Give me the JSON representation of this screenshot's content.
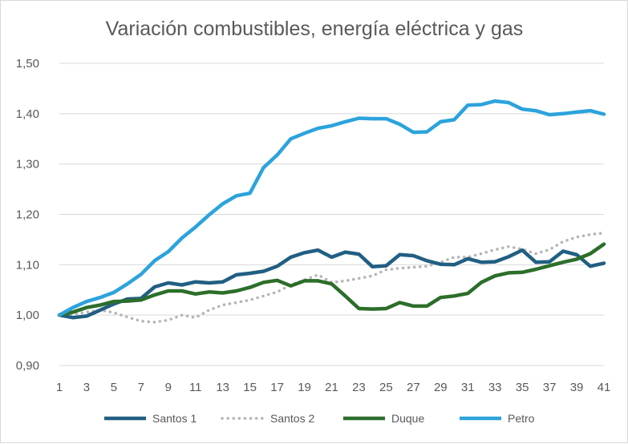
{
  "chart_data": {
    "type": "line",
    "title": "Variación combustibles, energía eléctrica y gas",
    "xlabel": "",
    "ylabel": "",
    "ylim": [
      0.9,
      1.5
    ],
    "grid": true,
    "legend_position": "bottom",
    "y_ticks": [
      "0,90",
      "1,00",
      "1,10",
      "1,20",
      "1,30",
      "1,40",
      "1,50"
    ],
    "x_ticks": [
      "1",
      "3",
      "5",
      "7",
      "9",
      "11",
      "13",
      "15",
      "17",
      "19",
      "21",
      "23",
      "25",
      "27",
      "29",
      "31",
      "33",
      "35",
      "37",
      "39",
      "41"
    ],
    "x": [
      1,
      2,
      3,
      4,
      5,
      6,
      7,
      8,
      9,
      10,
      11,
      12,
      13,
      14,
      15,
      16,
      17,
      18,
      19,
      20,
      21,
      22,
      23,
      24,
      25,
      26,
      27,
      28,
      29,
      30,
      31,
      32,
      33,
      34,
      35,
      36,
      37,
      38,
      39,
      40,
      41
    ],
    "series": [
      {
        "name": "Santos 1",
        "color": "#215f82",
        "style": "solid",
        "values": [
          1.0,
          0.995,
          0.998,
          1.01,
          1.022,
          1.032,
          1.033,
          1.056,
          1.064,
          1.06,
          1.066,
          1.064,
          1.066,
          1.08,
          1.083,
          1.087,
          1.097,
          1.115,
          1.124,
          1.129,
          1.115,
          1.125,
          1.121,
          1.096,
          1.098,
          1.12,
          1.118,
          1.108,
          1.101,
          1.1,
          1.112,
          1.105,
          1.106,
          1.116,
          1.129,
          1.105,
          1.106,
          1.127,
          1.12,
          1.097,
          1.103
        ]
      },
      {
        "name": "Santos 2",
        "color": "#b4b4b4",
        "style": "dotted",
        "values": [
          1.0,
          1.002,
          1.006,
          1.01,
          1.005,
          0.996,
          0.988,
          0.986,
          0.99,
          1.0,
          0.995,
          1.01,
          1.02,
          1.025,
          1.03,
          1.038,
          1.046,
          1.06,
          1.07,
          1.08,
          1.065,
          1.068,
          1.073,
          1.078,
          1.09,
          1.093,
          1.095,
          1.097,
          1.105,
          1.115,
          1.115,
          1.122,
          1.13,
          1.136,
          1.131,
          1.122,
          1.13,
          1.146,
          1.155,
          1.16,
          1.163
        ]
      },
      {
        "name": "Duque",
        "color": "#2c6e2a",
        "style": "solid",
        "values": [
          1.0,
          1.006,
          1.015,
          1.02,
          1.027,
          1.028,
          1.03,
          1.04,
          1.048,
          1.048,
          1.042,
          1.046,
          1.044,
          1.048,
          1.055,
          1.065,
          1.069,
          1.058,
          1.068,
          1.068,
          1.062,
          1.038,
          1.013,
          1.012,
          1.013,
          1.025,
          1.018,
          1.018,
          1.035,
          1.038,
          1.043,
          1.065,
          1.078,
          1.084,
          1.085,
          1.091,
          1.098,
          1.105,
          1.111,
          1.122,
          1.141
        ]
      },
      {
        "name": "Petro",
        "color": "#2ca3dc",
        "style": "solid",
        "values": [
          1.0,
          1.015,
          1.027,
          1.035,
          1.045,
          1.062,
          1.081,
          1.108,
          1.126,
          1.153,
          1.175,
          1.199,
          1.221,
          1.237,
          1.242,
          1.293,
          1.318,
          1.35,
          1.361,
          1.371,
          1.376,
          1.384,
          1.391,
          1.39,
          1.39,
          1.379,
          1.363,
          1.364,
          1.384,
          1.388,
          1.417,
          1.418,
          1.425,
          1.422,
          1.409,
          1.406,
          1.398,
          1.4,
          1.403,
          1.406,
          1.399
        ]
      }
    ]
  }
}
